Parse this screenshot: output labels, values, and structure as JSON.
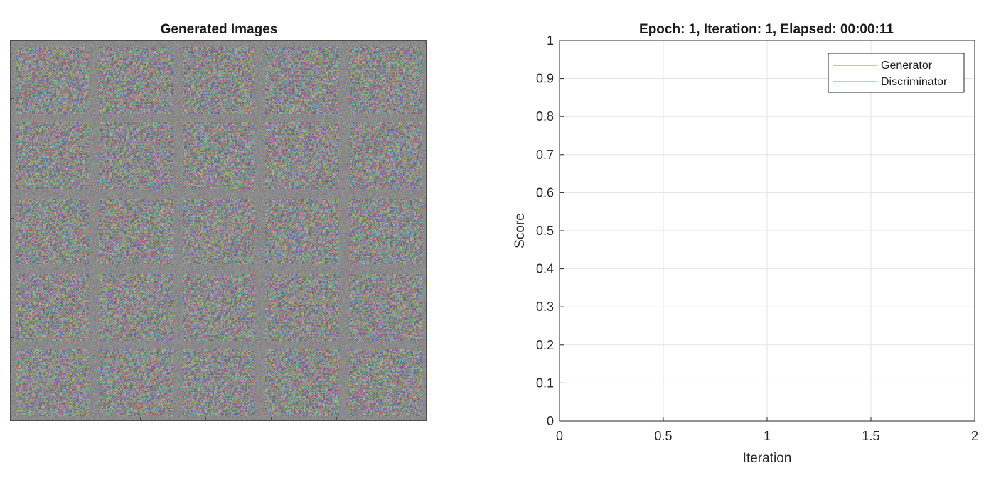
{
  "image_panel": {
    "title": "Generated Images"
  },
  "chart_data": {
    "type": "line",
    "title": "Epoch: 1, Iteration: 1, Elapsed: 00:00:11",
    "xlabel": "Iteration",
    "ylabel": "Score",
    "xlim": [
      0,
      2
    ],
    "ylim": [
      0,
      1
    ],
    "x_ticks": [
      0,
      0.5,
      1,
      1.5,
      2
    ],
    "x_tick_labels": [
      "0",
      "0.5",
      "1",
      "1.5",
      "2"
    ],
    "y_ticks": [
      0,
      0.1,
      0.2,
      0.3,
      0.4,
      0.5,
      0.6,
      0.7,
      0.8,
      0.9,
      1
    ],
    "y_tick_labels": [
      "0",
      "0.1",
      "0.2",
      "0.3",
      "0.4",
      "0.5",
      "0.6",
      "0.7",
      "0.8",
      "0.9",
      "1"
    ],
    "grid": true,
    "legend_position": "top-right",
    "series": [
      {
        "name": "Generator",
        "color": "#7EBFE6",
        "x": [],
        "y": []
      },
      {
        "name": "Discriminator",
        "color": "#F0A484",
        "x": [],
        "y": []
      }
    ]
  }
}
